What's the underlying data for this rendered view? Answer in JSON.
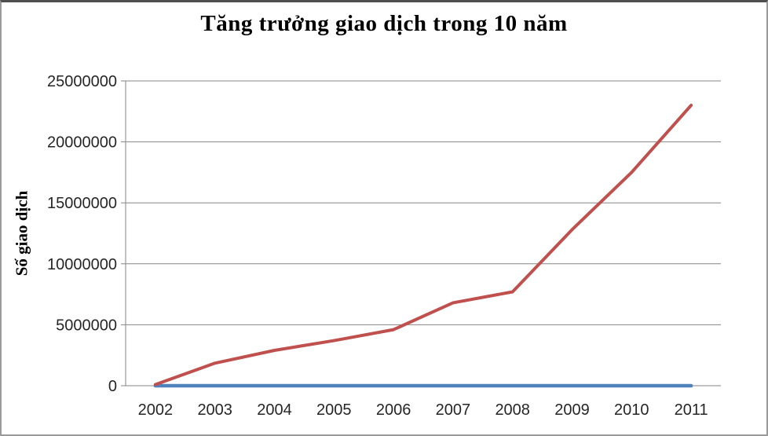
{
  "chart_data": {
    "type": "line",
    "title": "Tăng trưởng giao dịch trong 10 năm",
    "ylabel": "Số giao dịch",
    "xlabel": "",
    "categories": [
      "2002",
      "2003",
      "2004",
      "2005",
      "2006",
      "2007",
      "2008",
      "2009",
      "2010",
      "2011"
    ],
    "series": [
      {
        "id": "series-1",
        "color": "#4F81BD",
        "stroke_width": 4.5,
        "values": [
          0,
          0,
          0,
          0,
          0,
          0,
          0,
          0,
          0,
          0
        ]
      },
      {
        "id": "series-2",
        "color": "#C0504D",
        "stroke_width": 4,
        "values": [
          100000,
          1850000,
          2900000,
          3700000,
          4600000,
          6800000,
          7700000,
          12800000,
          17500000,
          23000000
        ]
      }
    ],
    "ylim": [
      0,
      25000000
    ],
    "yticks": [
      0,
      5000000,
      10000000,
      15000000,
      20000000,
      25000000
    ],
    "grid": true,
    "legend": false,
    "colors": {
      "grid": "#868686",
      "axis": "#868686",
      "tick_text": "#262626"
    }
  }
}
